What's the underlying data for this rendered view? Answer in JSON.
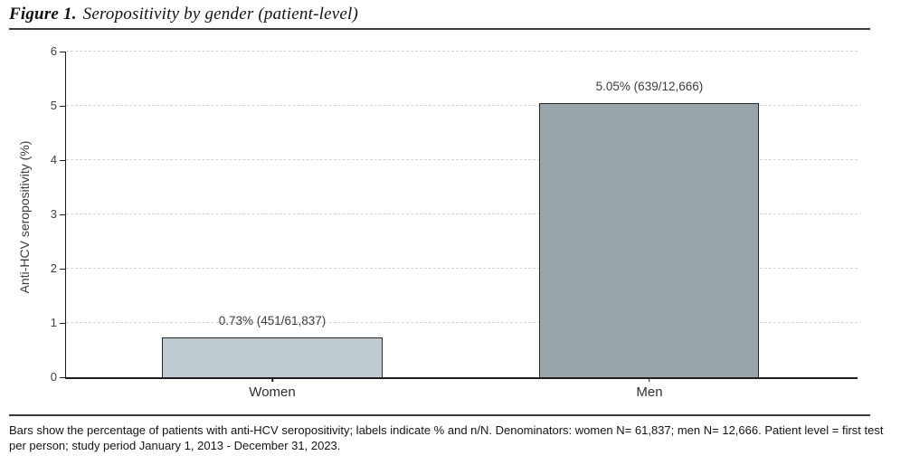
{
  "figure": {
    "label": "Figure 1.",
    "title": "Seropositivity by gender (patient-level)"
  },
  "chart_data": {
    "type": "bar",
    "categories": [
      "Women",
      "Men"
    ],
    "values": [
      0.73,
      5.05
    ],
    "bar_labels": [
      "0.73% (451/61,837)",
      "5.05% (639/12,666)"
    ],
    "numerators": [
      451,
      639
    ],
    "denominators": [
      61837,
      12666
    ],
    "title": "",
    "xlabel": "",
    "ylabel": "Anti-HCV seropositivity (%)",
    "ylim": [
      0,
      6
    ],
    "yticks": [
      "0",
      "1",
      "2",
      "3",
      "4",
      "5",
      "6"
    ],
    "grid": "horizontal-dashed",
    "legend_position": "none",
    "bar_colors": [
      "#c0cad1",
      "#9aa4ab"
    ]
  },
  "footnote": "Bars show the percentage of patients with anti-HCV seropositivity; labels indicate % and n/N. Denominators: women N= 61,837; men N= 12,666. Patient level = first test per person; study period January 1, 2013 - December 31, 2023."
}
